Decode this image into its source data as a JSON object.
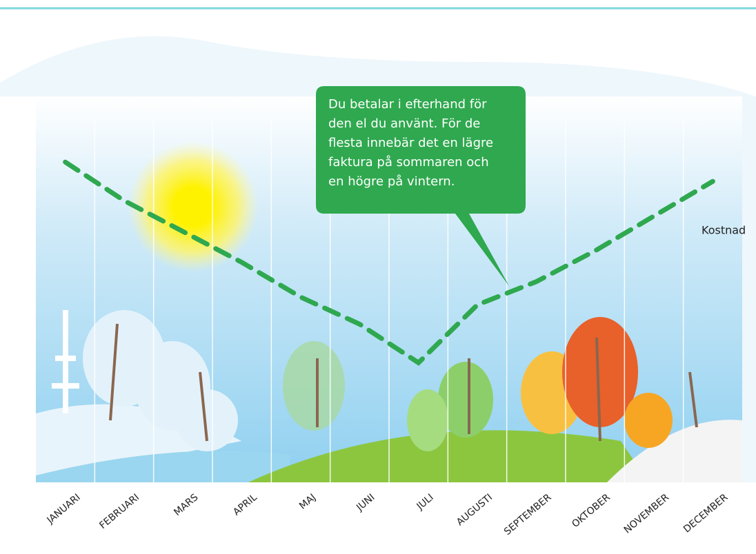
{
  "chart_data": {
    "type": "line",
    "categories": [
      "JANUARI",
      "FEBRUARI",
      "MARS",
      "APRIL",
      "MAJ",
      "JUNI",
      "JULI",
      "AUGUSTI",
      "SEPTEMBER",
      "OKTOBER",
      "NOVEMBER",
      "DECEMBER"
    ],
    "series": [
      {
        "name": "Kostnad",
        "color": "#2fa84f",
        "values": [
          83,
          73,
          65,
          57,
          48,
          41,
          31,
          46,
          52,
          60,
          69,
          78
        ]
      }
    ],
    "ylim": [
      0,
      100
    ],
    "annotation": [
      "Du betalar i efterhand för",
      "den el du använt. För de",
      "flesta innebär det en lägre",
      "faktura på sommaren och",
      "en högre på vintern."
    ]
  }
}
